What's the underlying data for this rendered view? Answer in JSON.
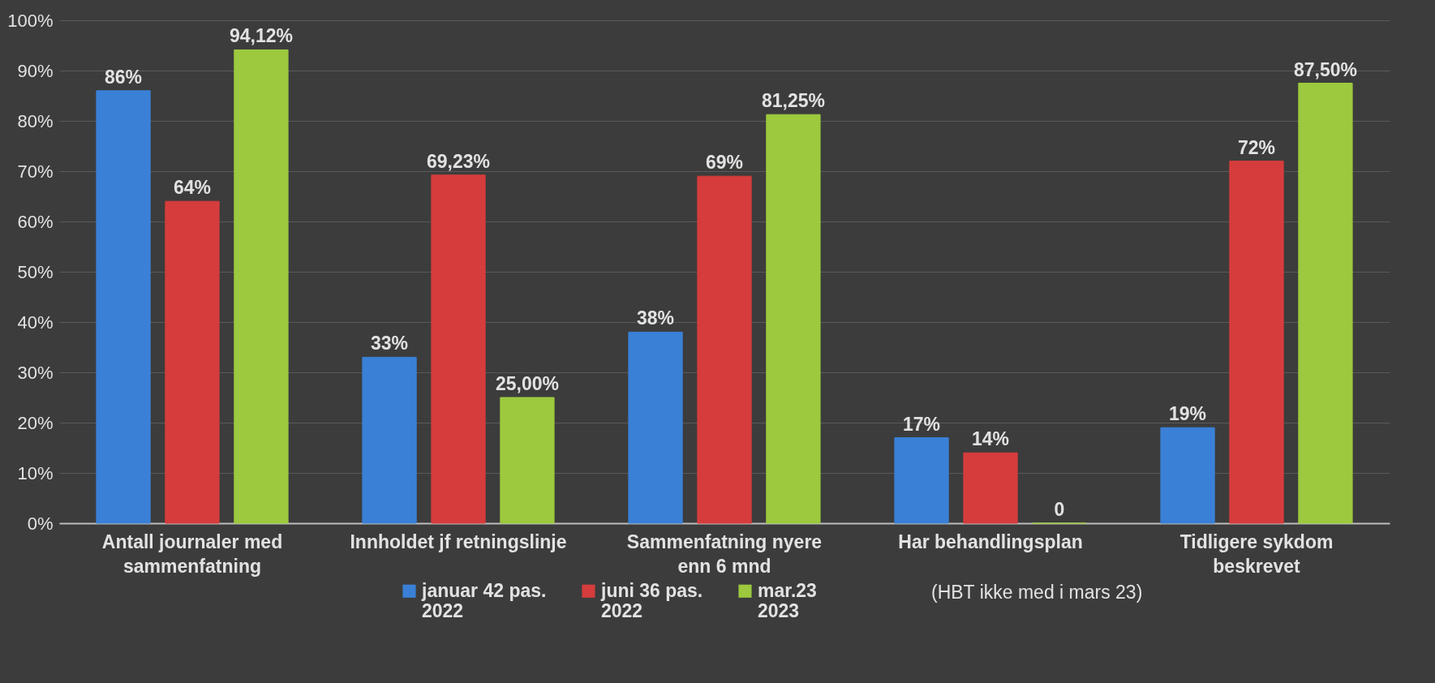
{
  "chart_data": {
    "type": "bar",
    "categories": [
      "Antall journaler med\nsammenfatning",
      "Innholdet jf retningslinje",
      "Sammenfatning nyere\nenn 6 mnd",
      "Har behandlingsplan",
      "Tidligere sykdom\nbeskrevet"
    ],
    "series": [
      {
        "name": "januar 42 pas.\n2022",
        "color": "#3a80d6",
        "values": [
          86,
          33,
          38,
          17,
          19
        ],
        "value_labels": [
          "86%",
          "33%",
          "38%",
          "17%",
          "19%"
        ]
      },
      {
        "name": "juni 36 pas.\n2022",
        "color": "#d63c3c",
        "values": [
          64,
          69.23,
          69,
          14,
          72
        ],
        "value_labels": [
          "64%",
          "69,23%",
          "69%",
          "14%",
          "72%"
        ]
      },
      {
        "name": "mar.23\n2023",
        "color": "#9cc93e",
        "values": [
          94.12,
          25,
          81.25,
          0,
          87.5
        ],
        "value_labels": [
          "94,12%",
          "25,00%",
          "81,25%",
          "0",
          "87,50%"
        ]
      }
    ],
    "ylim": [
      0,
      100
    ],
    "yticks": [
      {
        "value": 0,
        "label": "0%"
      },
      {
        "value": 10,
        "label": "10%"
      },
      {
        "value": 20,
        "label": "20%"
      },
      {
        "value": 30,
        "label": "30%"
      },
      {
        "value": 40,
        "label": "40%"
      },
      {
        "value": 50,
        "label": "50%"
      },
      {
        "value": 60,
        "label": "60%"
      },
      {
        "value": 70,
        "label": "70%"
      },
      {
        "value": 80,
        "label": "80%"
      },
      {
        "value": 90,
        "label": "90%"
      },
      {
        "value": 100,
        "label": "100%"
      }
    ],
    "grid": "y",
    "legend": "bottom",
    "annotations": [
      "(HBT ikke med i mars 23)"
    ]
  }
}
